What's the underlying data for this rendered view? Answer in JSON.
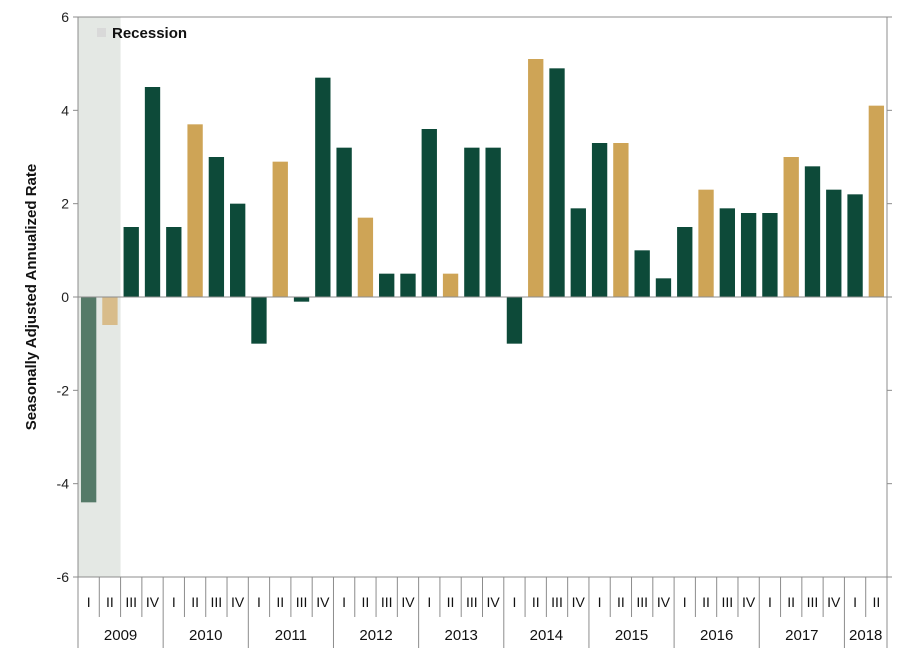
{
  "chart_data": {
    "type": "bar",
    "ylabel": "Seasonally Adjusted Annualized Rate",
    "ylim": [
      -6,
      6
    ],
    "yticks": [
      6,
      4,
      2,
      0,
      -2,
      -4,
      -6
    ],
    "legend": {
      "label": "Recession",
      "placement": "top-left"
    },
    "recession_quarters": [
      0,
      1
    ],
    "years": [
      {
        "label": "2009",
        "quarters": 4
      },
      {
        "label": "2010",
        "quarters": 4
      },
      {
        "label": "2011",
        "quarters": 4
      },
      {
        "label": "2012",
        "quarters": 4
      },
      {
        "label": "2013",
        "quarters": 4
      },
      {
        "label": "2014",
        "quarters": 4
      },
      {
        "label": "2015",
        "quarters": 4
      },
      {
        "label": "2016",
        "quarters": 4
      },
      {
        "label": "2017",
        "quarters": 4
      },
      {
        "label": "2018",
        "quarters": 2
      }
    ],
    "categories": [
      "I",
      "II",
      "III",
      "IV",
      "I",
      "II",
      "III",
      "IV",
      "I",
      "II",
      "III",
      "IV",
      "I",
      "II",
      "III",
      "IV",
      "I",
      "II",
      "III",
      "IV",
      "I",
      "II",
      "III",
      "IV",
      "I",
      "II",
      "III",
      "IV",
      "I",
      "II",
      "III",
      "IV",
      "I",
      "II",
      "III",
      "IV",
      "I",
      "II"
    ],
    "values": [
      -4.4,
      -0.6,
      1.5,
      4.5,
      1.5,
      3.7,
      3.0,
      2.0,
      -1.0,
      2.9,
      -0.1,
      4.7,
      3.2,
      1.7,
      0.5,
      0.5,
      3.6,
      0.5,
      3.2,
      3.2,
      -1.0,
      5.1,
      4.9,
      1.9,
      3.3,
      3.3,
      1.0,
      0.4,
      1.5,
      2.3,
      1.9,
      1.8,
      1.8,
      3.0,
      2.8,
      2.3,
      2.2,
      4.1
    ],
    "highlighted": [
      false,
      true,
      false,
      false,
      false,
      true,
      false,
      false,
      false,
      true,
      false,
      false,
      false,
      true,
      false,
      false,
      false,
      true,
      false,
      false,
      false,
      true,
      false,
      false,
      false,
      true,
      false,
      false,
      false,
      true,
      false,
      false,
      false,
      true,
      false,
      false,
      false,
      true
    ],
    "colors": {
      "main": "#0d4a39",
      "highlight": "#cea456",
      "recession_main": "#557a68",
      "recession_highlight": "#d8bc8a",
      "recession_shade": "#e4e8e4",
      "axis": "#8c8c8c"
    }
  }
}
